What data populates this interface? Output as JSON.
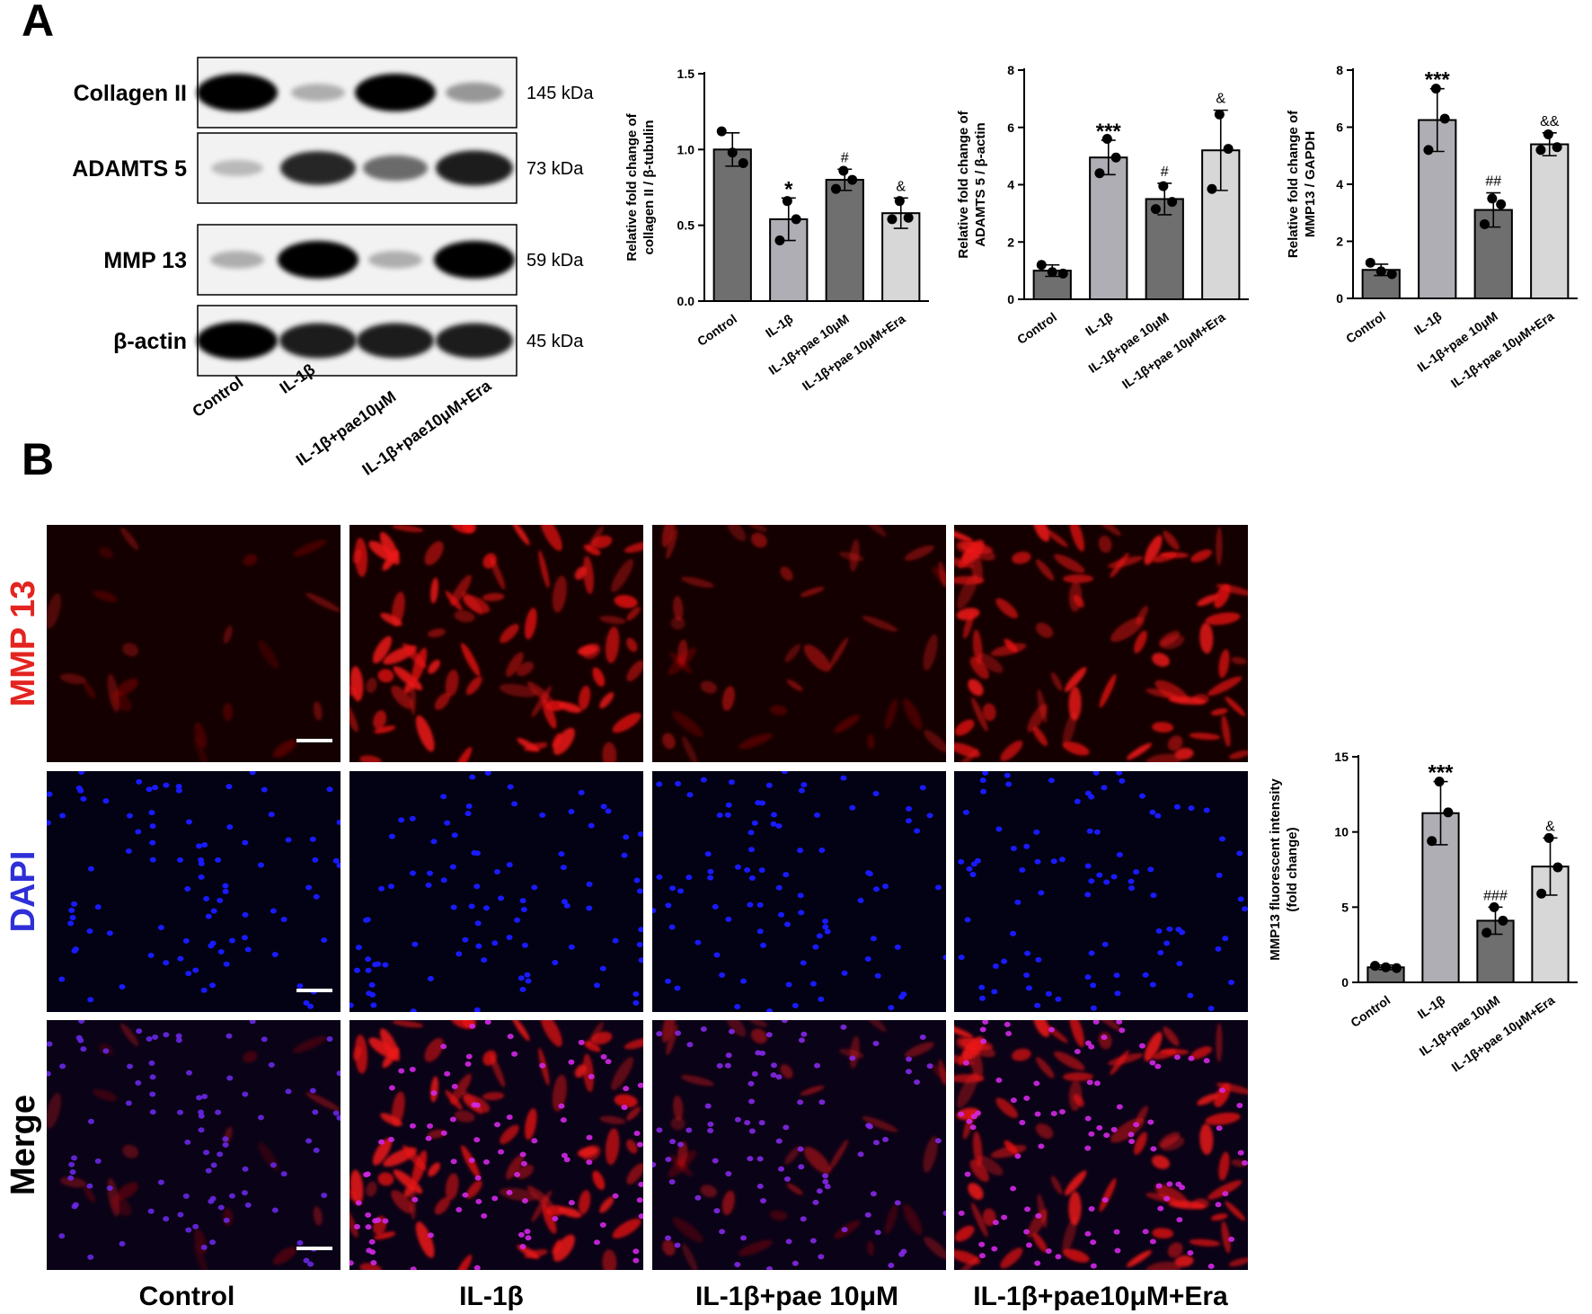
{
  "panels": {
    "a": "A",
    "b": "B"
  },
  "western_blot": {
    "rows": [
      {
        "protein": "Collagen II",
        "kda": "145 kDa",
        "intensity": [
          1.0,
          0.25,
          1.0,
          0.35
        ]
      },
      {
        "protein": "ADAMTS 5",
        "kda": "73 kDa",
        "intensity": [
          0.2,
          0.85,
          0.55,
          0.9
        ]
      },
      {
        "protein": "MMP 13",
        "kda": "59 kDa",
        "intensity": [
          0.25,
          1.0,
          0.25,
          1.0
        ]
      },
      {
        "protein": "β-actin",
        "kda": "45 kDa",
        "intensity": [
          1.0,
          0.9,
          0.9,
          0.9
        ]
      }
    ],
    "lanes": [
      "Control",
      "IL-1β",
      "IL-1β+pae10μM",
      "IL-1β+pae10μM+Era"
    ]
  },
  "chart_data": [
    {
      "type": "bar",
      "categories": [
        "Control",
        "IL-1β",
        "IL-1β+pae 10μM",
        "IL-1β+pae 10μM+Era"
      ],
      "values": [
        1.0,
        0.54,
        0.8,
        0.58
      ],
      "errors": [
        0.11,
        0.14,
        0.07,
        0.1
      ],
      "points": [
        [
          1.12,
          0.98,
          0.91
        ],
        [
          0.66,
          0.54,
          0.4
        ],
        [
          0.86,
          0.8,
          0.74
        ],
        [
          0.66,
          0.55,
          0.54
        ]
      ],
      "sig": [
        "",
        "*",
        "#",
        "&"
      ],
      "ylabel_lines": [
        "Relative fold change of",
        "collagen II / β-tubulin"
      ],
      "yticks": [
        "0.0",
        "0.5",
        "1.0",
        "1.5"
      ],
      "ylim": [
        0,
        1.5
      ],
      "bar_colors": [
        "#6f6f6f",
        "#aeaeb4",
        "#6f6f6f",
        "#d7d7d7"
      ]
    },
    {
      "type": "bar",
      "categories": [
        "Control",
        "IL-1β",
        "IL-1β+pae 10μM",
        "IL-1β+pae 10μM+Era"
      ],
      "values": [
        1.0,
        4.95,
        3.5,
        5.2
      ],
      "errors": [
        0.2,
        0.6,
        0.55,
        1.4
      ],
      "points": [
        [
          1.2,
          0.95,
          0.9
        ],
        [
          5.6,
          4.95,
          4.4
        ],
        [
          3.95,
          3.4,
          3.15
        ],
        [
          6.45,
          5.25,
          3.85
        ]
      ],
      "sig": [
        "",
        "***",
        "#",
        "&"
      ],
      "ylabel_lines": [
        "Relative fold change of",
        "ADAMTS 5 / β-actin"
      ],
      "yticks": [
        "0",
        "2",
        "4",
        "6",
        "8"
      ],
      "ylim": [
        0,
        8
      ],
      "bar_colors": [
        "#6f6f6f",
        "#aeaeb4",
        "#6f6f6f",
        "#d7d7d7"
      ]
    },
    {
      "type": "bar",
      "categories": [
        "Control",
        "IL-1β",
        "IL-1β+pae 10μM",
        "IL-1β+pae 10μM+Era"
      ],
      "values": [
        1.0,
        6.25,
        3.1,
        5.4
      ],
      "errors": [
        0.2,
        1.1,
        0.6,
        0.4
      ],
      "points": [
        [
          1.25,
          0.95,
          0.85
        ],
        [
          7.35,
          6.3,
          5.2
        ],
        [
          3.5,
          3.3,
          2.6
        ],
        [
          5.75,
          5.3,
          5.2
        ]
      ],
      "sig": [
        "",
        "***",
        "##",
        "&&"
      ],
      "ylabel_lines": [
        "Relative fold change of",
        "MMP13 / GAPDH"
      ],
      "yticks": [
        "0",
        "2",
        "4",
        "6",
        "8"
      ],
      "ylim": [
        0,
        8
      ],
      "bar_colors": [
        "#6f6f6f",
        "#aeaeb4",
        "#6f6f6f",
        "#d7d7d7"
      ]
    },
    {
      "type": "bar",
      "categories": [
        "Control",
        "IL-1β",
        "IL-1β+pae 10μM",
        "IL-1β+pae 10μM+Era"
      ],
      "values": [
        1.0,
        11.25,
        4.1,
        7.7
      ],
      "errors": [
        0.15,
        2.1,
        0.9,
        1.9
      ],
      "points": [
        [
          1.1,
          1.0,
          0.95
        ],
        [
          13.35,
          11.3,
          9.4
        ],
        [
          5.0,
          4.1,
          3.3
        ],
        [
          9.6,
          7.65,
          5.9
        ]
      ],
      "sig": [
        "",
        "***",
        "###",
        "&"
      ],
      "ylabel_lines": [
        "MMP13 fluorescent intensity",
        "(fold change)"
      ],
      "yticks": [
        "0",
        "5",
        "10",
        "15"
      ],
      "ylim": [
        0,
        15
      ],
      "bar_colors": [
        "#6f6f6f",
        "#aeaeb4",
        "#6f6f6f",
        "#d7d7d7"
      ]
    }
  ],
  "micrographs": {
    "rows": [
      {
        "label": "MMP 13",
        "color": "#e32420",
        "stain": "red"
      },
      {
        "label": "DAPI",
        "color": "#2f2fd8",
        "stain": "blue"
      },
      {
        "label": "Merge",
        "color": "#000000",
        "stain": "merge"
      }
    ],
    "columns": [
      "Control",
      "IL-1β",
      "IL-1β+pae 10μM",
      "IL-1β+pae10μM+Era"
    ],
    "red_density": [
      0.12,
      1.0,
      0.35,
      1.0
    ]
  }
}
